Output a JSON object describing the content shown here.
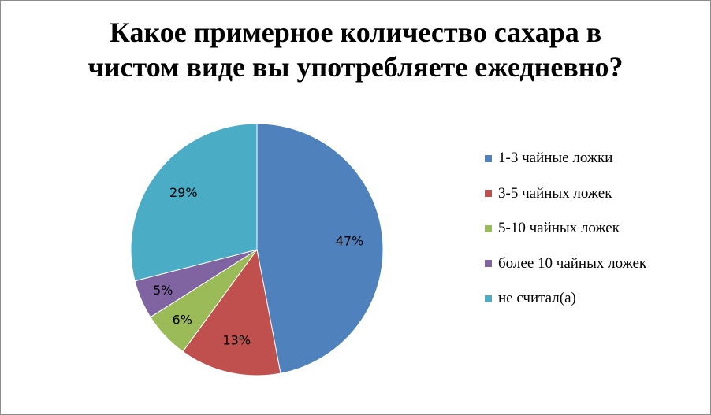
{
  "chart_data": {
    "type": "pie",
    "title_lines": [
      "Какое примерное количество сахара в",
      "чистом виде вы употребляете ежедневно?"
    ],
    "categories": [
      "1-3 чайные ложки",
      "3-5 чайных ложек",
      "5-10 чайных ложек",
      "более 10 чайных ложек",
      "не считал(а)"
    ],
    "values": [
      47,
      13,
      6,
      5,
      29
    ],
    "data_labels": [
      "47%",
      "13%",
      "6%",
      "5%",
      "29%"
    ],
    "colors": [
      "#4F81BD",
      "#C0504D",
      "#9BBB59",
      "#8064A2",
      "#4BACC6"
    ],
    "legend_position": "right"
  }
}
